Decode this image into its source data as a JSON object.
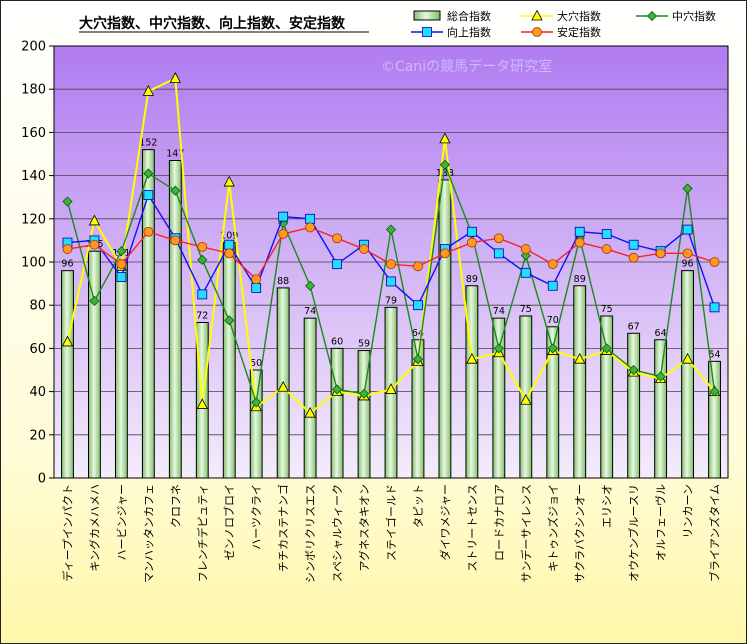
{
  "chart_data": {
    "type": "bar",
    "title": "大穴指数、中穴指数、向上指数、安定指数",
    "watermark": "©Caniの競馬データ研究室",
    "ylim": [
      0,
      200
    ],
    "yticks": [
      0,
      20,
      40,
      60,
      80,
      100,
      120,
      140,
      160,
      180,
      200
    ],
    "categories": [
      "ディープインパクト",
      "キングカメハメハ",
      "ハービンジャー",
      "マンハッタンカフェ",
      "クロフネ",
      "フレンチデピュティ",
      "ゼンノロブロイ",
      "ハーツクライ",
      "チチカステナンゴ",
      "シンボリクリスエス",
      "スペシャルウィーク",
      "アグネスタキオン",
      "ステイゴールド",
      "タピット",
      "ダイワメジャー",
      "ストリートセンス",
      "ロードカナロア",
      "サンデーサイレンス",
      "キトゥンズジョイ",
      "サクラバクシンオー",
      "エリシオ",
      "オウケンブルースリ",
      "オルフェーヴル",
      "リンカーン",
      "ブライアンズタイム"
    ],
    "series": [
      {
        "name": "総合指数",
        "type": "bar",
        "color": "#b8e2b0",
        "labels": true,
        "values": [
          96,
          105,
          101,
          152,
          147,
          72,
          109,
          50,
          88,
          74,
          60,
          59,
          79,
          64,
          138,
          89,
          74,
          75,
          70,
          89,
          75,
          67,
          64,
          96,
          54
        ]
      },
      {
        "name": "大穴指数",
        "type": "line",
        "color": "#ffff00",
        "marker": "triangle",
        "values": [
          63,
          119,
          98,
          179,
          185,
          34,
          137,
          33,
          42,
          30,
          40,
          38,
          41,
          54,
          157,
          55,
          58,
          36,
          59,
          55,
          59,
          49,
          46,
          55,
          40
        ]
      },
      {
        "name": "中穴指数",
        "type": "line",
        "color": "#1a8a1a",
        "marker": "diamond",
        "values": [
          128,
          82,
          105,
          141,
          133,
          101,
          73,
          35,
          118,
          89,
          41,
          39,
          115,
          55,
          145,
          113,
          60,
          103,
          60,
          111,
          60,
          50,
          47,
          134,
          40
        ]
      },
      {
        "name": "向上指数",
        "type": "line",
        "color": "#1010ff",
        "marker": "square",
        "values": [
          109,
          110,
          93,
          131,
          111,
          85,
          108,
          88,
          121,
          120,
          99,
          108,
          91,
          80,
          106,
          114,
          104,
          95,
          89,
          114,
          113,
          108,
          105,
          115,
          79
        ]
      },
      {
        "name": "安定指数",
        "type": "line",
        "color": "#ff2020",
        "marker": "circle",
        "values": [
          106,
          108,
          99,
          114,
          110,
          107,
          104,
          92,
          113,
          116,
          111,
          106,
          99,
          98,
          104,
          109,
          111,
          106,
          99,
          109,
          106,
          102,
          104,
          104,
          100
        ]
      }
    ]
  }
}
